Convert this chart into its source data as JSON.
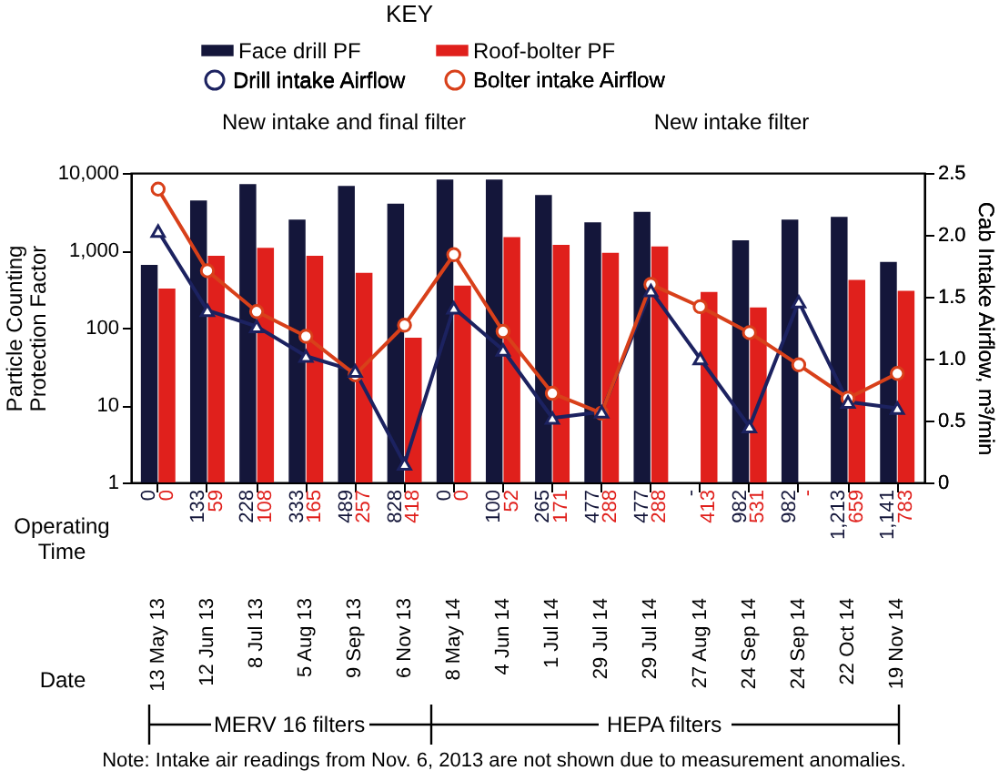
{
  "chart_data": {
    "type": "bar",
    "legend_title": "KEY",
    "legend": "top",
    "log": "y",
    "xlabel": "Date",
    "ylabel": "Particle Counting Protection Factor",
    "y2label": "Cab Intake Airflow, m³/min",
    "categories": [
      "13 May 13",
      "12 Jun 13",
      "8 Jul 13",
      "5 Aug 13",
      "9 Sep 13",
      "6 Nov 13",
      "8 May 14",
      "4 Jun 14",
      "1 Jul 14",
      "29 Jul 14",
      "29 Jul 14",
      "27 Aug 14",
      "24 Sep 14",
      "24 Sep 14",
      "22 Oct 14",
      "19 Nov 14"
    ],
    "ylim": [
      1,
      10000
    ],
    "yticks": [
      1,
      10,
      100,
      {
        "value": 1000,
        "label": "1,000"
      },
      {
        "value": 10000,
        "label": "10,000"
      }
    ],
    "y2lim": [
      0,
      2.5
    ],
    "y2ticks": [
      0,
      0.5,
      {
        "value": 1,
        "label": "1.0"
      },
      1.5,
      {
        "value": 2,
        "label": "2.0"
      },
      2.5
    ],
    "series": [
      {
        "name": "Face drill PF",
        "type": "bar",
        "color": "#14163a",
        "values": [
          650,
          4400,
          7200,
          2500,
          6800,
          4000,
          8200,
          8200,
          5200,
          2300,
          3150,
          null,
          1350,
          2500,
          2700,
          710
        ]
      },
      {
        "name": "Roof-bolter PF",
        "type": "bar",
        "color": "#e0201c",
        "values": [
          320,
          850,
          1080,
          850,
          510,
          74,
          350,
          1480,
          1180,
          930,
          1120,
          290,
          183,
          null,
          415,
          300
        ]
      },
      {
        "name": "Drill intake Airflow",
        "type": "line",
        "axis": "y2",
        "marker": "triangle",
        "color": "#1c2260",
        "values": [
          2.03,
          1.39,
          1.26,
          1.02,
          0.9,
          0.15,
          1.41,
          1.07,
          0.52,
          0.57,
          1.55,
          1.0,
          0.45,
          1.46,
          0.65,
          0.6
        ]
      },
      {
        "name": "Bolter intake Airflow",
        "type": "line",
        "axis": "y2",
        "marker": "circle",
        "color": "#d8401a",
        "values": [
          2.37,
          1.71,
          1.38,
          1.18,
          0.87,
          1.27,
          1.84,
          1.22,
          0.72,
          0.56,
          1.6,
          1.42,
          1.21,
          0.95,
          0.68,
          0.88
        ]
      }
    ],
    "annotations": [
      "New intake and final filter",
      "New intake filter",
      "Operating Time",
      "MERV 16 filters",
      "HEPA filters",
      "Note: Intake air readings from Nov. 6, 2013 are not shown due to measurement anomalies.",
      "0",
      "0",
      "133",
      "59",
      "228",
      "108",
      "333",
      "165",
      "489",
      "257",
      "828",
      "418",
      "0",
      "0",
      "100",
      "52",
      "265",
      "171",
      "477",
      "288",
      "477",
      "288",
      "-",
      "413",
      "982",
      "531",
      "982",
      "-",
      "1,213",
      "659",
      "1,141",
      "783"
    ]
  }
}
